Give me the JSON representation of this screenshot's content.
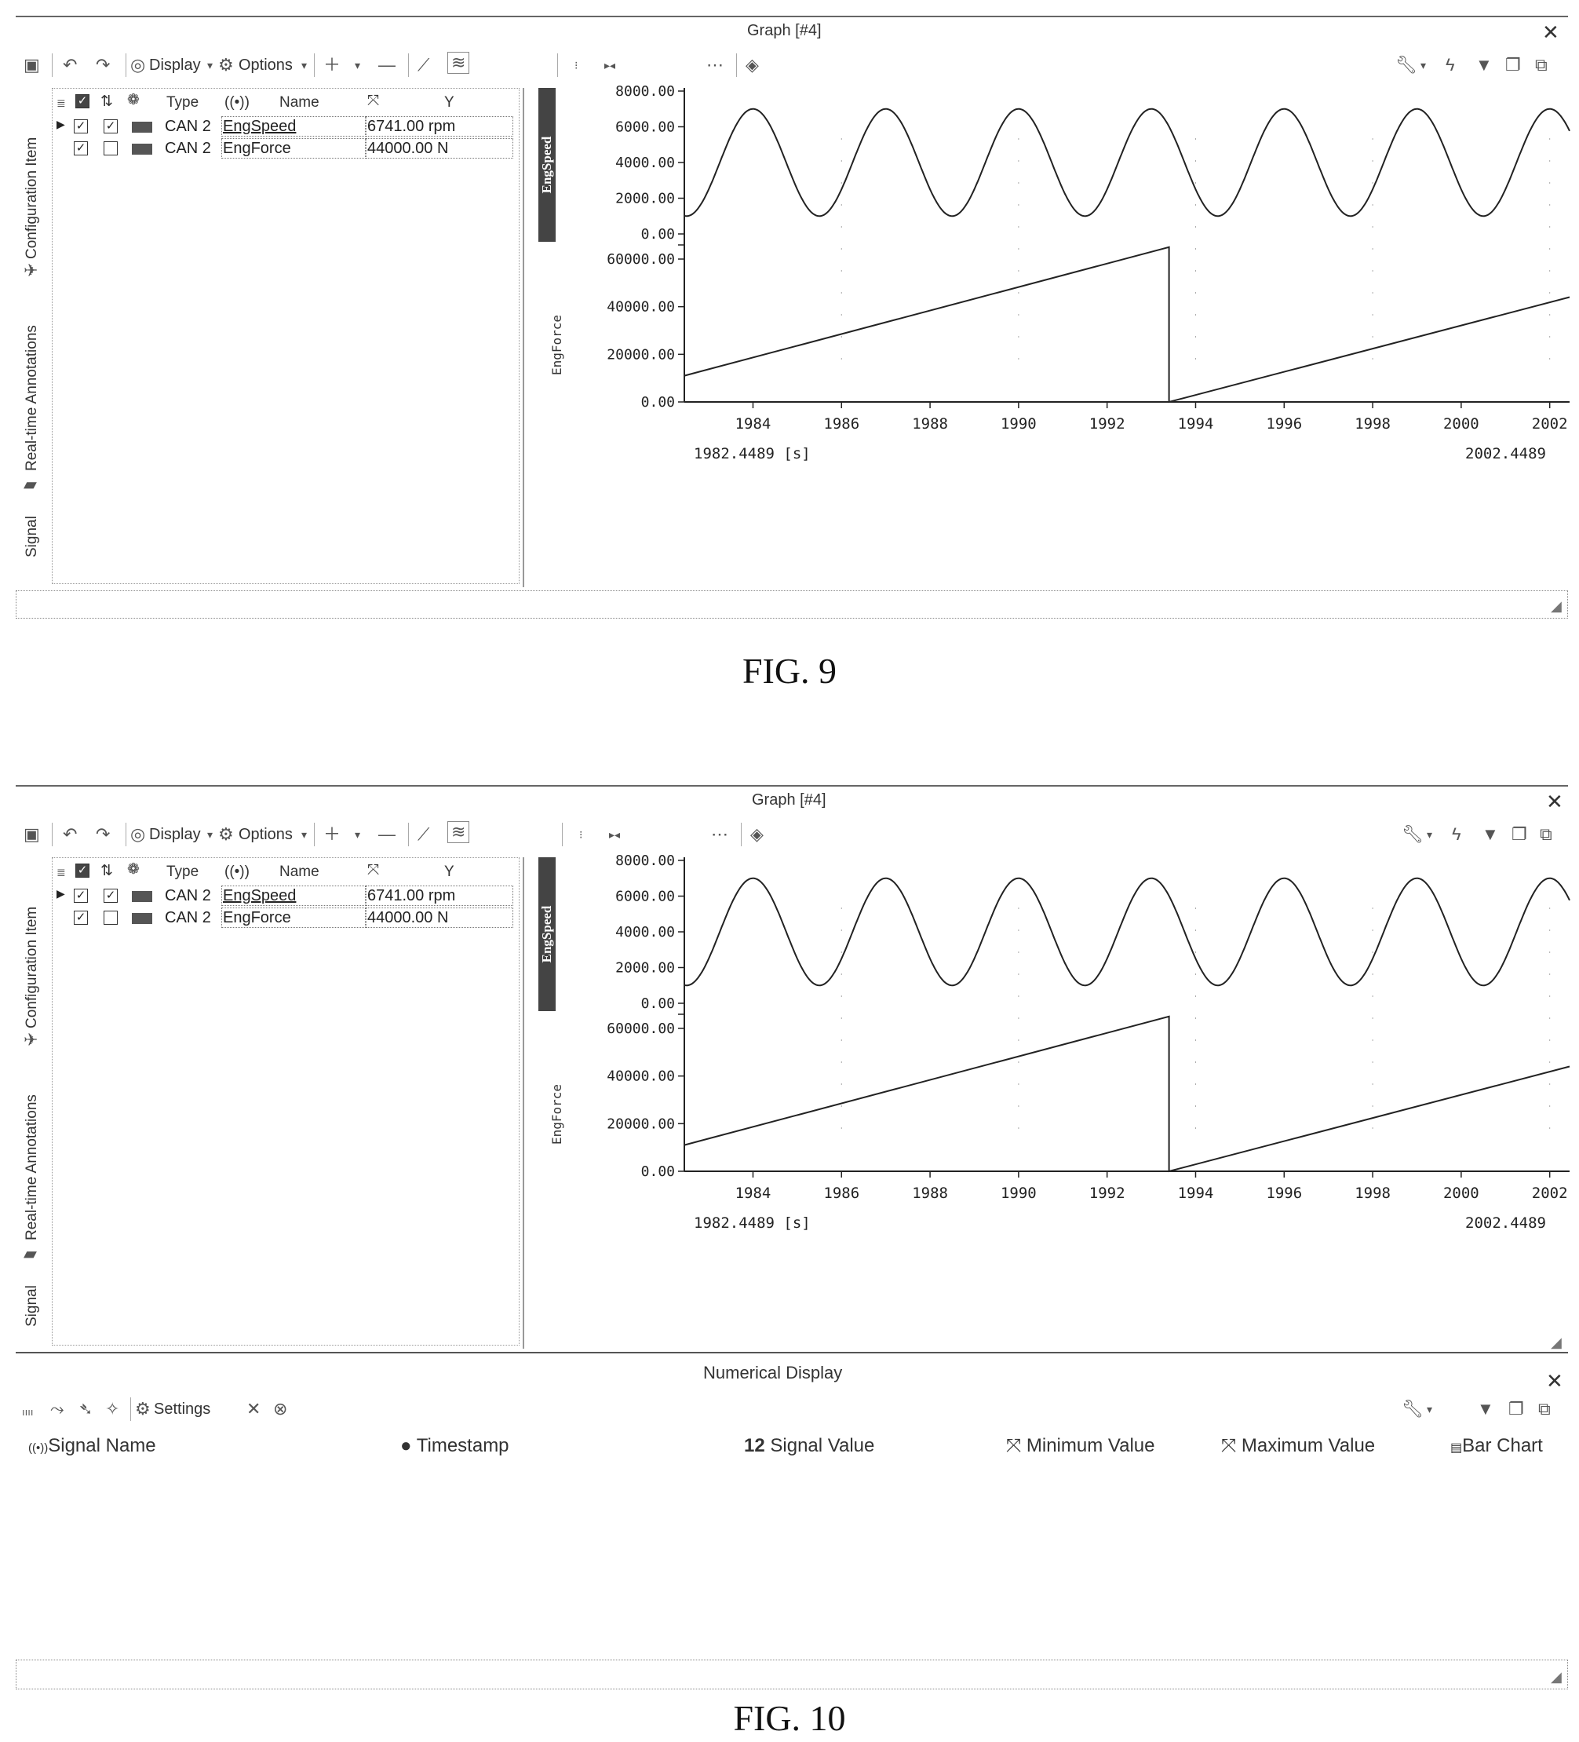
{
  "figures": [
    {
      "caption": "FIG. 9",
      "graph": {
        "title": "Graph [#4]",
        "toolbar": {
          "display_label": "Display",
          "options_label": "Options"
        },
        "tabs": {
          "configuration": "Configuration Item",
          "annotations": "Real-time Annotations",
          "signal": "Signal"
        },
        "columns": {
          "type": "Type",
          "name": "Name",
          "y": "Y"
        },
        "signals": [
          {
            "type": "CAN 2",
            "name": "EngSpeed",
            "value": "6741.00 rpm",
            "check1": true,
            "check2": true
          },
          {
            "type": "CAN 2",
            "name": "EngForce",
            "value": "44000.00 N",
            "check1": true,
            "check2": false
          }
        ]
      }
    },
    {
      "caption": "FIG. 10",
      "graph": {
        "title": "Graph [#4]",
        "toolbar": {
          "display_label": "Display",
          "options_label": "Options"
        },
        "tabs": {
          "configuration": "Configuration Item",
          "annotations": "Real-time Annotations",
          "signal": "Signal"
        },
        "columns": {
          "type": "Type",
          "name": "Name",
          "y": "Y"
        },
        "signals": [
          {
            "type": "CAN 2",
            "name": "EngSpeed",
            "value": "6741.00 rpm",
            "check1": true,
            "check2": true
          },
          {
            "type": "CAN 2",
            "name": "EngForce",
            "value": "44000.00 N",
            "check1": true,
            "check2": false
          }
        ]
      },
      "numerical_display": {
        "title": "Numerical Display",
        "settings_label": "Settings",
        "columns": [
          "Signal Name",
          "Timestamp",
          "Signal Value",
          "Minimum Value",
          "Maximum Value",
          "Bar Chart"
        ],
        "value_icon_text": "12"
      }
    }
  ],
  "chart_data": [
    {
      "type": "line",
      "figure": "FIG. 9",
      "x_ticks": [
        1984,
        1986,
        1988,
        1990,
        1992,
        1994,
        1996,
        1998,
        2000,
        2002
      ],
      "xlim": [
        1982.4489,
        2002.4489
      ],
      "x_start_label": "1982.4489 [s]",
      "x_end_label": "2002.4489",
      "series": [
        {
          "name": "EngSpeed",
          "ylim": [
            0,
            8000
          ],
          "y_ticks": [
            "8000.00",
            "6000.00",
            "4000.00",
            "2000.00",
            "0.00"
          ],
          "wave": "sine",
          "min": 1000,
          "max": 7000,
          "period": 3.0,
          "peak_at": 1984.0
        },
        {
          "name": "EngForce",
          "ylim": [
            0,
            60000
          ],
          "y_ticks": [
            "60000.00",
            "40000.00",
            "20000.00",
            "0.00"
          ],
          "points": [
            [
              1982.4489,
              11000
            ],
            [
              1993.4,
              65000
            ],
            [
              1993.4,
              0
            ],
            [
              2002.4489,
              44000
            ]
          ]
        }
      ]
    },
    {
      "type": "line",
      "figure": "FIG. 10",
      "x_ticks": [
        1984,
        1986,
        1988,
        1990,
        1992,
        1994,
        1996,
        1998,
        2000,
        2002
      ],
      "xlim": [
        1982.4489,
        2002.4489
      ],
      "x_start_label": "1982.4489 [s]",
      "x_end_label": "2002.4489",
      "series": [
        {
          "name": "EngSpeed",
          "ylim": [
            0,
            8000
          ],
          "y_ticks": [
            "8000.00",
            "6000.00",
            "4000.00",
            "2000.00",
            "0.00"
          ],
          "wave": "sine",
          "min": 1000,
          "max": 7000,
          "period": 3.0,
          "peak_at": 1984.0
        },
        {
          "name": "EngForce",
          "ylim": [
            0,
            60000
          ],
          "y_ticks": [
            "60000.00",
            "40000.00",
            "20000.00",
            "0.00"
          ],
          "points": [
            [
              1982.4489,
              11000
            ],
            [
              1993.4,
              65000
            ],
            [
              1993.4,
              0
            ],
            [
              2002.4489,
              44000
            ]
          ]
        }
      ]
    }
  ]
}
